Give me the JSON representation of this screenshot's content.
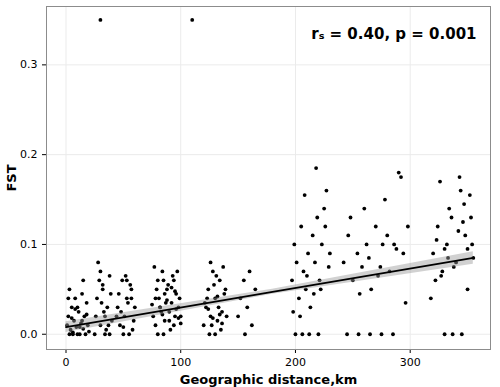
{
  "chart_data": {
    "type": "scatter",
    "x_label": "Geographic distance,km",
    "y_label": "FST",
    "annotation": "rₛ = 0.40, p = 0.001",
    "color": "#000000",
    "marker": "circle",
    "grid": true,
    "xlim": [
      -17,
      370
    ],
    "ylim": [
      -0.017,
      0.365
    ],
    "xticks": [
      0,
      100,
      200,
      300
    ],
    "yticks": [
      {
        "value": 0,
        "label": "0.0"
      },
      0.1,
      0.2,
      0.3
    ],
    "x": [
      1,
      2,
      3,
      4,
      5,
      6,
      7,
      8,
      9,
      10,
      11,
      12,
      13,
      14,
      15,
      16,
      17,
      18,
      19,
      20,
      3,
      5,
      8,
      12,
      15,
      18,
      2,
      6,
      10,
      14,
      26,
      28,
      30,
      32,
      34,
      36,
      38,
      40,
      27,
      33,
      35,
      29,
      31,
      37,
      39,
      25,
      30,
      34,
      38,
      32,
      30,
      110,
      45,
      47,
      49,
      51,
      53,
      55,
      57,
      59,
      46,
      52,
      48,
      50,
      54,
      56,
      58,
      60,
      44,
      53,
      57,
      50,
      76,
      78,
      80,
      82,
      84,
      86,
      88,
      90,
      92,
      94,
      96,
      98,
      100,
      77,
      79,
      81,
      83,
      85,
      87,
      89,
      91,
      93,
      95,
      97,
      99,
      78,
      82,
      86,
      90,
      94,
      80,
      84,
      88,
      92,
      96,
      100,
      75,
      85,
      95,
      98,
      120,
      122,
      124,
      126,
      128,
      130,
      132,
      134,
      136,
      138,
      121,
      125,
      129,
      133,
      137,
      140,
      123,
      127,
      131,
      135,
      124,
      128,
      132,
      136,
      139,
      126,
      130,
      134,
      150,
      152,
      155,
      158,
      160,
      162,
      165,
      156,
      197,
      199,
      201,
      203,
      205,
      207,
      209,
      211,
      213,
      215,
      217,
      219,
      221,
      223,
      225,
      227,
      229,
      200,
      206,
      212,
      218,
      222,
      226,
      230,
      204,
      210,
      216,
      198,
      208,
      220,
      242,
      246,
      250,
      254,
      258,
      262,
      266,
      270,
      274,
      278,
      282,
      286,
      290,
      294,
      298,
      245,
      255,
      265,
      275,
      285,
      248,
      256,
      264,
      272,
      280,
      288,
      296,
      260,
      276,
      292,
      320,
      324,
      328,
      332,
      336,
      340,
      344,
      348,
      352,
      355,
      322,
      326,
      330,
      334,
      338,
      342,
      346,
      350,
      354,
      330,
      323,
      333,
      343,
      353,
      327,
      337,
      347,
      318,
      345,
      350
    ],
    "values": [
      0.01,
      0.02,
      0,
      0.005,
      0.03,
      0,
      0.015,
      0.04,
      0.008,
      0,
      0.025,
      0,
      0.012,
      0.045,
      0.006,
      0.02,
      0,
      0.035,
      0.01,
      0.003,
      0.05,
      0.018,
      0.028,
      0.008,
      0.06,
      0.022,
      0.04,
      0.002,
      0.03,
      0.015,
      0.02,
      0.08,
      0.01,
      0.05,
      0,
      0.03,
      0.065,
      0.015,
      0.04,
      0.025,
      0.005,
      0.06,
      0.035,
      0.01,
      0.045,
      0,
      0.07,
      0.02,
      0,
      0.055,
      0.35,
      0.35,
      0.03,
      0.01,
      0.06,
      0.02,
      0.04,
      0,
      0.05,
      0.015,
      0.045,
      0.065,
      0.025,
      0.008,
      0.035,
      0.055,
      0.005,
      0.03,
      0.02,
      0.06,
      0.04,
      0,
      0.02,
      0.04,
      0.06,
      0.03,
      0.07,
      0.015,
      0.05,
      0.025,
      0.035,
      0.01,
      0.045,
      0.03,
      0.02,
      0.075,
      0.05,
      0.04,
      0.025,
      0.06,
      0.035,
      0.055,
      0.005,
      0.065,
      0.02,
      0.07,
      0.04,
      0.01,
      0.03,
      0.045,
      0.015,
      0.06,
      0,
      0.022,
      0.038,
      0.052,
      0.028,
      0.012,
      0.033,
      0,
      0.048,
      0.018,
      0.01,
      0.03,
      0.05,
      0.02,
      0.07,
      0.04,
      0.015,
      0.06,
      0.025,
      0.045,
      0.035,
      0,
      0.055,
      0.03,
      0.075,
      0.02,
      0.04,
      0.01,
      0.065,
      0.005,
      0.028,
      0.018,
      0.042,
      0.012,
      0.05,
      0.08,
      0,
      0.022,
      0.02,
      0.04,
      0.06,
      0.03,
      0.07,
      0.01,
      0.05,
      0,
      0.06,
      0.1,
      0.08,
      0.04,
      0.12,
      0.07,
      0.05,
      0.09,
      0.03,
      0.11,
      0.08,
      0.13,
      0.06,
      0.1,
      0.14,
      0.16,
      0.075,
      0,
      0,
      0,
      0.185,
      0.05,
      0.12,
      0.09,
      0.02,
      0.065,
      0.045,
      0.025,
      0.155,
      0,
      0.08,
      0.11,
      0.06,
      0.09,
      0.075,
      0.1,
      0.05,
      0.12,
      0.075,
      0.15,
      0.07,
      0.1,
      0.18,
      0.09,
      0.12,
      0,
      0,
      0,
      0,
      0,
      0.13,
      0.045,
      0.085,
      0.065,
      0.11,
      0.095,
      0.035,
      0.14,
      0.1,
      0.175,
      0.09,
      0.12,
      0.07,
      0.1,
      0.13,
      0.08,
      0.16,
      0.11,
      0.155,
      0.085,
      0.06,
      0.17,
      0.095,
      0.14,
      0.075,
      0.115,
      0.125,
      0.05,
      0.1,
      0,
      0.105,
      0.085,
      0.175,
      0.13,
      0.065,
      0,
      0.145,
      0.04,
      0,
      0.095
    ],
    "trend": {
      "color": "#000000",
      "x": [
        0,
        180,
        355
      ],
      "values": [
        0.008,
        0.0472,
        0.085
      ],
      "lower": [
        0.002,
        0.0445,
        0.078
      ],
      "upper": [
        0.014,
        0.05,
        0.092
      ]
    }
  }
}
